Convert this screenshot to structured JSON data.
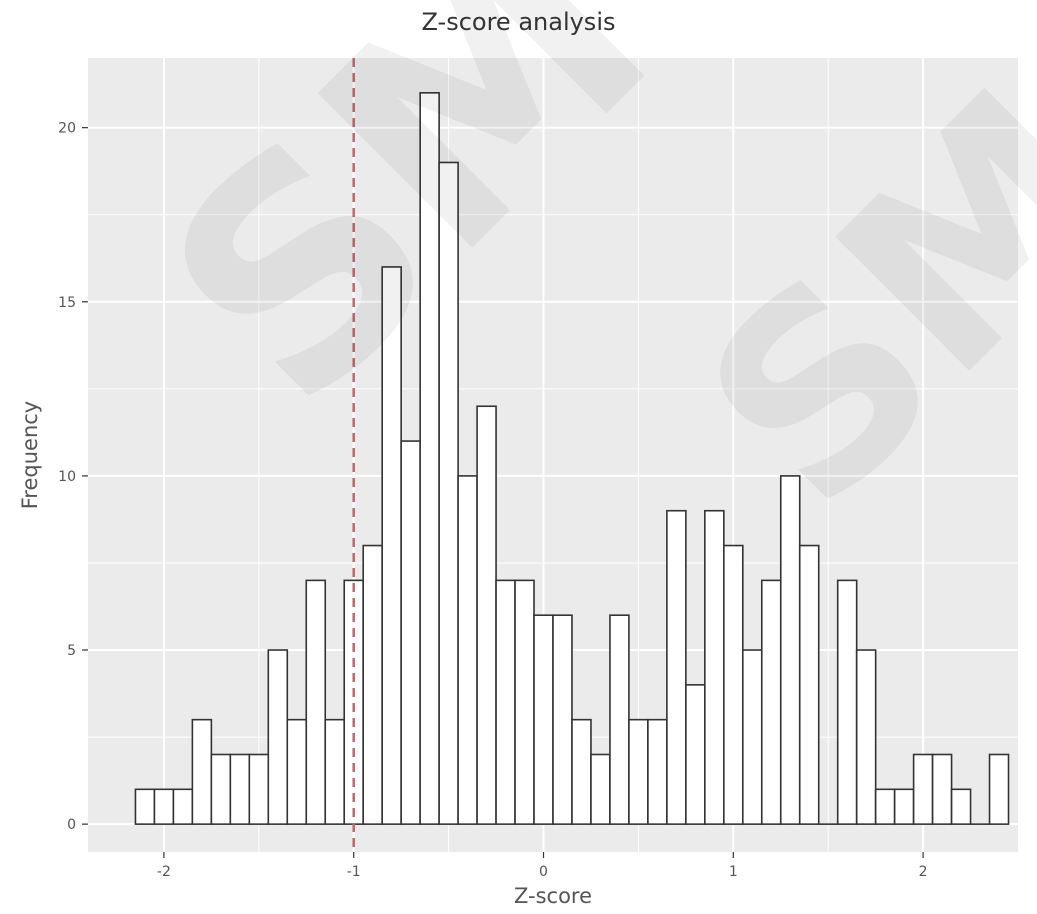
{
  "chart_data": {
    "type": "histogram",
    "title": "Z-score analysis",
    "xlabel": "Z-score",
    "ylabel": "Frequency",
    "bin_width": 0.1,
    "bin_start": -2.15,
    "values": [
      1,
      1,
      1,
      3,
      2,
      2,
      2,
      5,
      3,
      7,
      3,
      7,
      8,
      16,
      11,
      21,
      19,
      10,
      12,
      7,
      7,
      6,
      6,
      3,
      2,
      6,
      3,
      3,
      9,
      4,
      9,
      8,
      5,
      7,
      10,
      8,
      0,
      7,
      5,
      1,
      1,
      2,
      2,
      1,
      0,
      2
    ],
    "xlim": [
      -2.4,
      2.5
    ],
    "ylim": [
      -0.8,
      22
    ],
    "x_ticks": [
      -2,
      -1,
      0,
      1,
      2
    ],
    "x_tick_labels": [
      "-2",
      "-1",
      "0",
      "1",
      "2"
    ],
    "y_ticks": [
      0,
      5,
      10,
      15,
      20
    ],
    "y_tick_labels": [
      "0",
      "5",
      "10",
      "15",
      "20"
    ],
    "reference_line": {
      "x": -1,
      "style": "dashed",
      "color": "#c0686f"
    },
    "grid": true,
    "panel_background": "#ebebeb",
    "bar_fill": "#ffffff",
    "bar_stroke": "#333333",
    "grid_color": "#ffffff"
  },
  "watermark": "SM"
}
